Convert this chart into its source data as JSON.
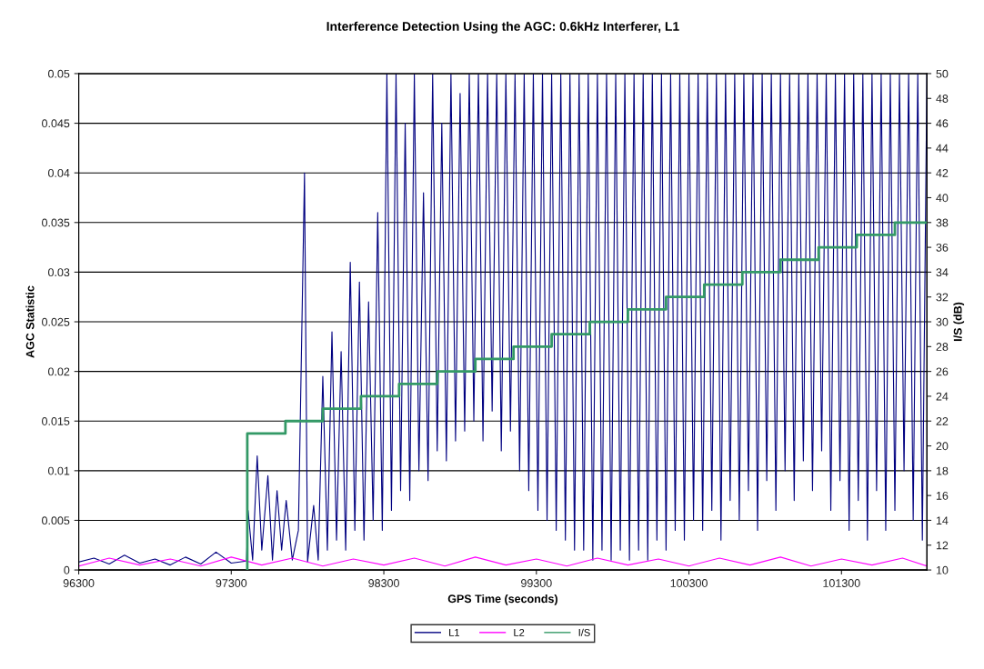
{
  "chart_data": {
    "type": "line",
    "title": "Interference Detection Using the AGC: 0.6kHz Interferer, L1",
    "xlabel": "GPS Time (seconds)",
    "ylabel": "AGC Statistic",
    "y2label": "I/S (dB)",
    "xlim": [
      96300,
      101860
    ],
    "xticks": [
      96300,
      97300,
      98300,
      99300,
      100300,
      101300
    ],
    "ylim": [
      0,
      0.05
    ],
    "yticks": [
      0,
      0.005,
      0.01,
      0.015,
      0.02,
      0.025,
      0.03,
      0.035,
      0.04,
      0.045,
      0.05
    ],
    "y2lim": [
      10,
      50
    ],
    "y2ticks": [
      10,
      12,
      14,
      16,
      18,
      20,
      22,
      24,
      26,
      28,
      30,
      32,
      34,
      36,
      38,
      40,
      42,
      44,
      46,
      48,
      50
    ],
    "grid": "y",
    "legend": "bottom",
    "marker": "none",
    "line_style": "solid",
    "series": [
      {
        "name": "L1",
        "color": "#000080",
        "x": [
          96300,
          96400,
          96500,
          96600,
          96700,
          96800,
          96900,
          97000,
          97100,
          97200,
          97300,
          97400,
          97410,
          97440,
          97470,
          97500,
          97540,
          97570,
          97600,
          97630,
          97660,
          97700,
          97740,
          97780,
          97800,
          97840,
          97870,
          97900,
          97930,
          97960,
          97990,
          98020,
          98050,
          98080,
          98110,
          98140,
          98170,
          98200,
          98230,
          98260,
          98290,
          98320,
          98350,
          98380,
          98410,
          98440,
          98470,
          98500,
          98530,
          98560,
          98590,
          98620,
          98650,
          98680,
          98710,
          98740,
          98770,
          98800,
          98830,
          98860,
          98890,
          98920,
          98950,
          98980,
          99010,
          99040,
          99070,
          99100,
          99130,
          99160,
          99190,
          99220,
          99250,
          99280,
          99310,
          99340,
          99370,
          99400,
          99430,
          99460,
          99490,
          99520,
          99550,
          99580,
          99610,
          99640,
          99670,
          99700,
          99730,
          99760,
          99790,
          99820,
          99850,
          99880,
          99910,
          99940,
          99970,
          100000,
          100030,
          100060,
          100090,
          100120,
          100150,
          100180,
          100210,
          100240,
          100270,
          100300,
          100330,
          100360,
          100390,
          100420,
          100450,
          100480,
          100510,
          100540,
          100570,
          100600,
          100630,
          100660,
          100690,
          100720,
          100750,
          100780,
          100810,
          100840,
          100870,
          100900,
          100930,
          100960,
          100990,
          101020,
          101050,
          101080,
          101110,
          101140,
          101170,
          101200,
          101230,
          101260,
          101290,
          101320,
          101350,
          101380,
          101410,
          101440,
          101470,
          101500,
          101530,
          101560,
          101590,
          101620,
          101650,
          101680,
          101710,
          101740,
          101770,
          101800,
          101830,
          101860
        ],
        "values": [
          0.0008,
          0.0012,
          0.0006,
          0.0015,
          0.0007,
          0.0011,
          0.0005,
          0.0013,
          0.0006,
          0.0018,
          0.0007,
          0.0009,
          0.006,
          0.001,
          0.0115,
          0.002,
          0.0095,
          0.001,
          0.008,
          0.002,
          0.007,
          0.001,
          0.004,
          0.04,
          0.0008,
          0.0065,
          0.001,
          0.0195,
          0.002,
          0.024,
          0.003,
          0.022,
          0.002,
          0.031,
          0.004,
          0.029,
          0.003,
          0.027,
          0.005,
          0.036,
          0.004,
          0.05,
          0.006,
          0.05,
          0.008,
          0.045,
          0.007,
          0.05,
          0.01,
          0.038,
          0.009,
          0.05,
          0.012,
          0.045,
          0.011,
          0.05,
          0.013,
          0.048,
          0.014,
          0.05,
          0.015,
          0.05,
          0.013,
          0.05,
          0.016,
          0.05,
          0.012,
          0.05,
          0.014,
          0.05,
          0.01,
          0.05,
          0.008,
          0.05,
          0.006,
          0.05,
          0.005,
          0.05,
          0.004,
          0.05,
          0.003,
          0.05,
          0.002,
          0.05,
          0.002,
          0.05,
          0.001,
          0.05,
          0.002,
          0.05,
          0.001,
          0.05,
          0.002,
          0.05,
          0.001,
          0.05,
          0.002,
          0.05,
          0.001,
          0.05,
          0.003,
          0.05,
          0.002,
          0.05,
          0.004,
          0.05,
          0.003,
          0.05,
          0.005,
          0.05,
          0.004,
          0.05,
          0.006,
          0.05,
          0.003,
          0.05,
          0.007,
          0.05,
          0.005,
          0.05,
          0.008,
          0.05,
          0.004,
          0.05,
          0.009,
          0.05,
          0.006,
          0.05,
          0.01,
          0.05,
          0.007,
          0.05,
          0.011,
          0.05,
          0.008,
          0.05,
          0.012,
          0.05,
          0.006,
          0.05,
          0.009,
          0.05,
          0.004,
          0.05,
          0.007,
          0.05,
          0.003,
          0.05,
          0.008,
          0.05,
          0.004,
          0.05,
          0.006,
          0.05,
          0.01,
          0.05,
          0.005,
          0.05,
          0.003,
          0.05
        ]
      },
      {
        "name": "L2",
        "color": "#ff00ff",
        "x": [
          96300,
          96500,
          96700,
          96900,
          97100,
          97300,
          97500,
          97700,
          97900,
          98100,
          98300,
          98500,
          98700,
          98900,
          99100,
          99300,
          99500,
          99700,
          99900,
          100100,
          100300,
          100500,
          100700,
          100900,
          101100,
          101300,
          101500,
          101700,
          101860
        ],
        "values": [
          0.0004,
          0.0012,
          0.0005,
          0.0011,
          0.0004,
          0.0013,
          0.0005,
          0.0012,
          0.0004,
          0.0011,
          0.0005,
          0.0012,
          0.0004,
          0.0013,
          0.0005,
          0.0011,
          0.0004,
          0.0012,
          0.0005,
          0.0011,
          0.0004,
          0.0012,
          0.0005,
          0.0013,
          0.0004,
          0.0011,
          0.0005,
          0.0012,
          0.0004
        ]
      },
      {
        "name": "I/S",
        "color": "#339966",
        "type": "step",
        "axis": "y2",
        "x": [
          97405,
          97405,
          97655,
          97900,
          98150,
          98400,
          98650,
          98900,
          99150,
          99400,
          99650,
          99900,
          100150,
          100400,
          100650,
          100900,
          101150,
          101400,
          101650,
          101860
        ],
        "values": [
          10,
          21,
          22,
          23,
          24,
          25,
          26,
          27,
          28,
          29,
          30,
          31,
          32,
          33,
          34,
          35,
          36,
          37,
          38,
          38
        ]
      }
    ]
  }
}
